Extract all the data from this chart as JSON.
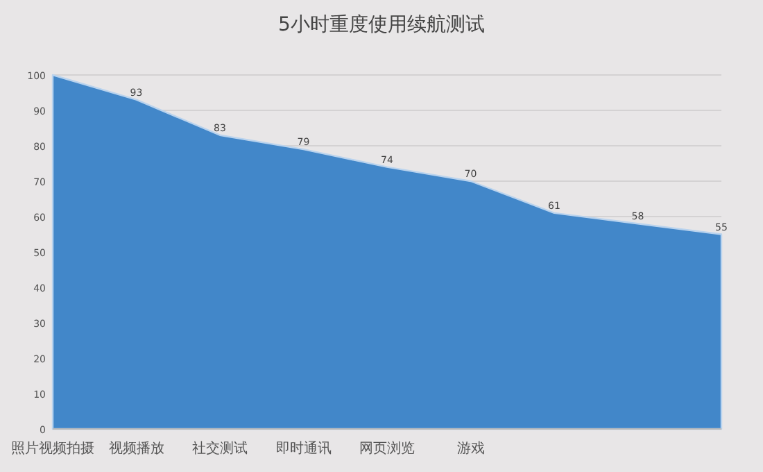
{
  "chart_data": {
    "type": "area",
    "title": "5小时重度使用续航测试",
    "categories": [
      "照片视频拍摄",
      "视频播放",
      "社交测试",
      "即时通讯",
      "网页浏览",
      "游戏",
      null,
      null,
      null
    ],
    "values": [
      100,
      93,
      83,
      79,
      74,
      70,
      61,
      58,
      55
    ],
    "value_labels": [
      null,
      "93",
      "83",
      "79",
      "74",
      "70",
      "61",
      "58",
      "55"
    ],
    "color": "#4287c9",
    "ylim": [
      0,
      100
    ],
    "yticks": [
      0,
      10,
      20,
      30,
      40,
      50,
      60,
      70,
      80,
      90,
      100
    ],
    "grid": "y"
  }
}
